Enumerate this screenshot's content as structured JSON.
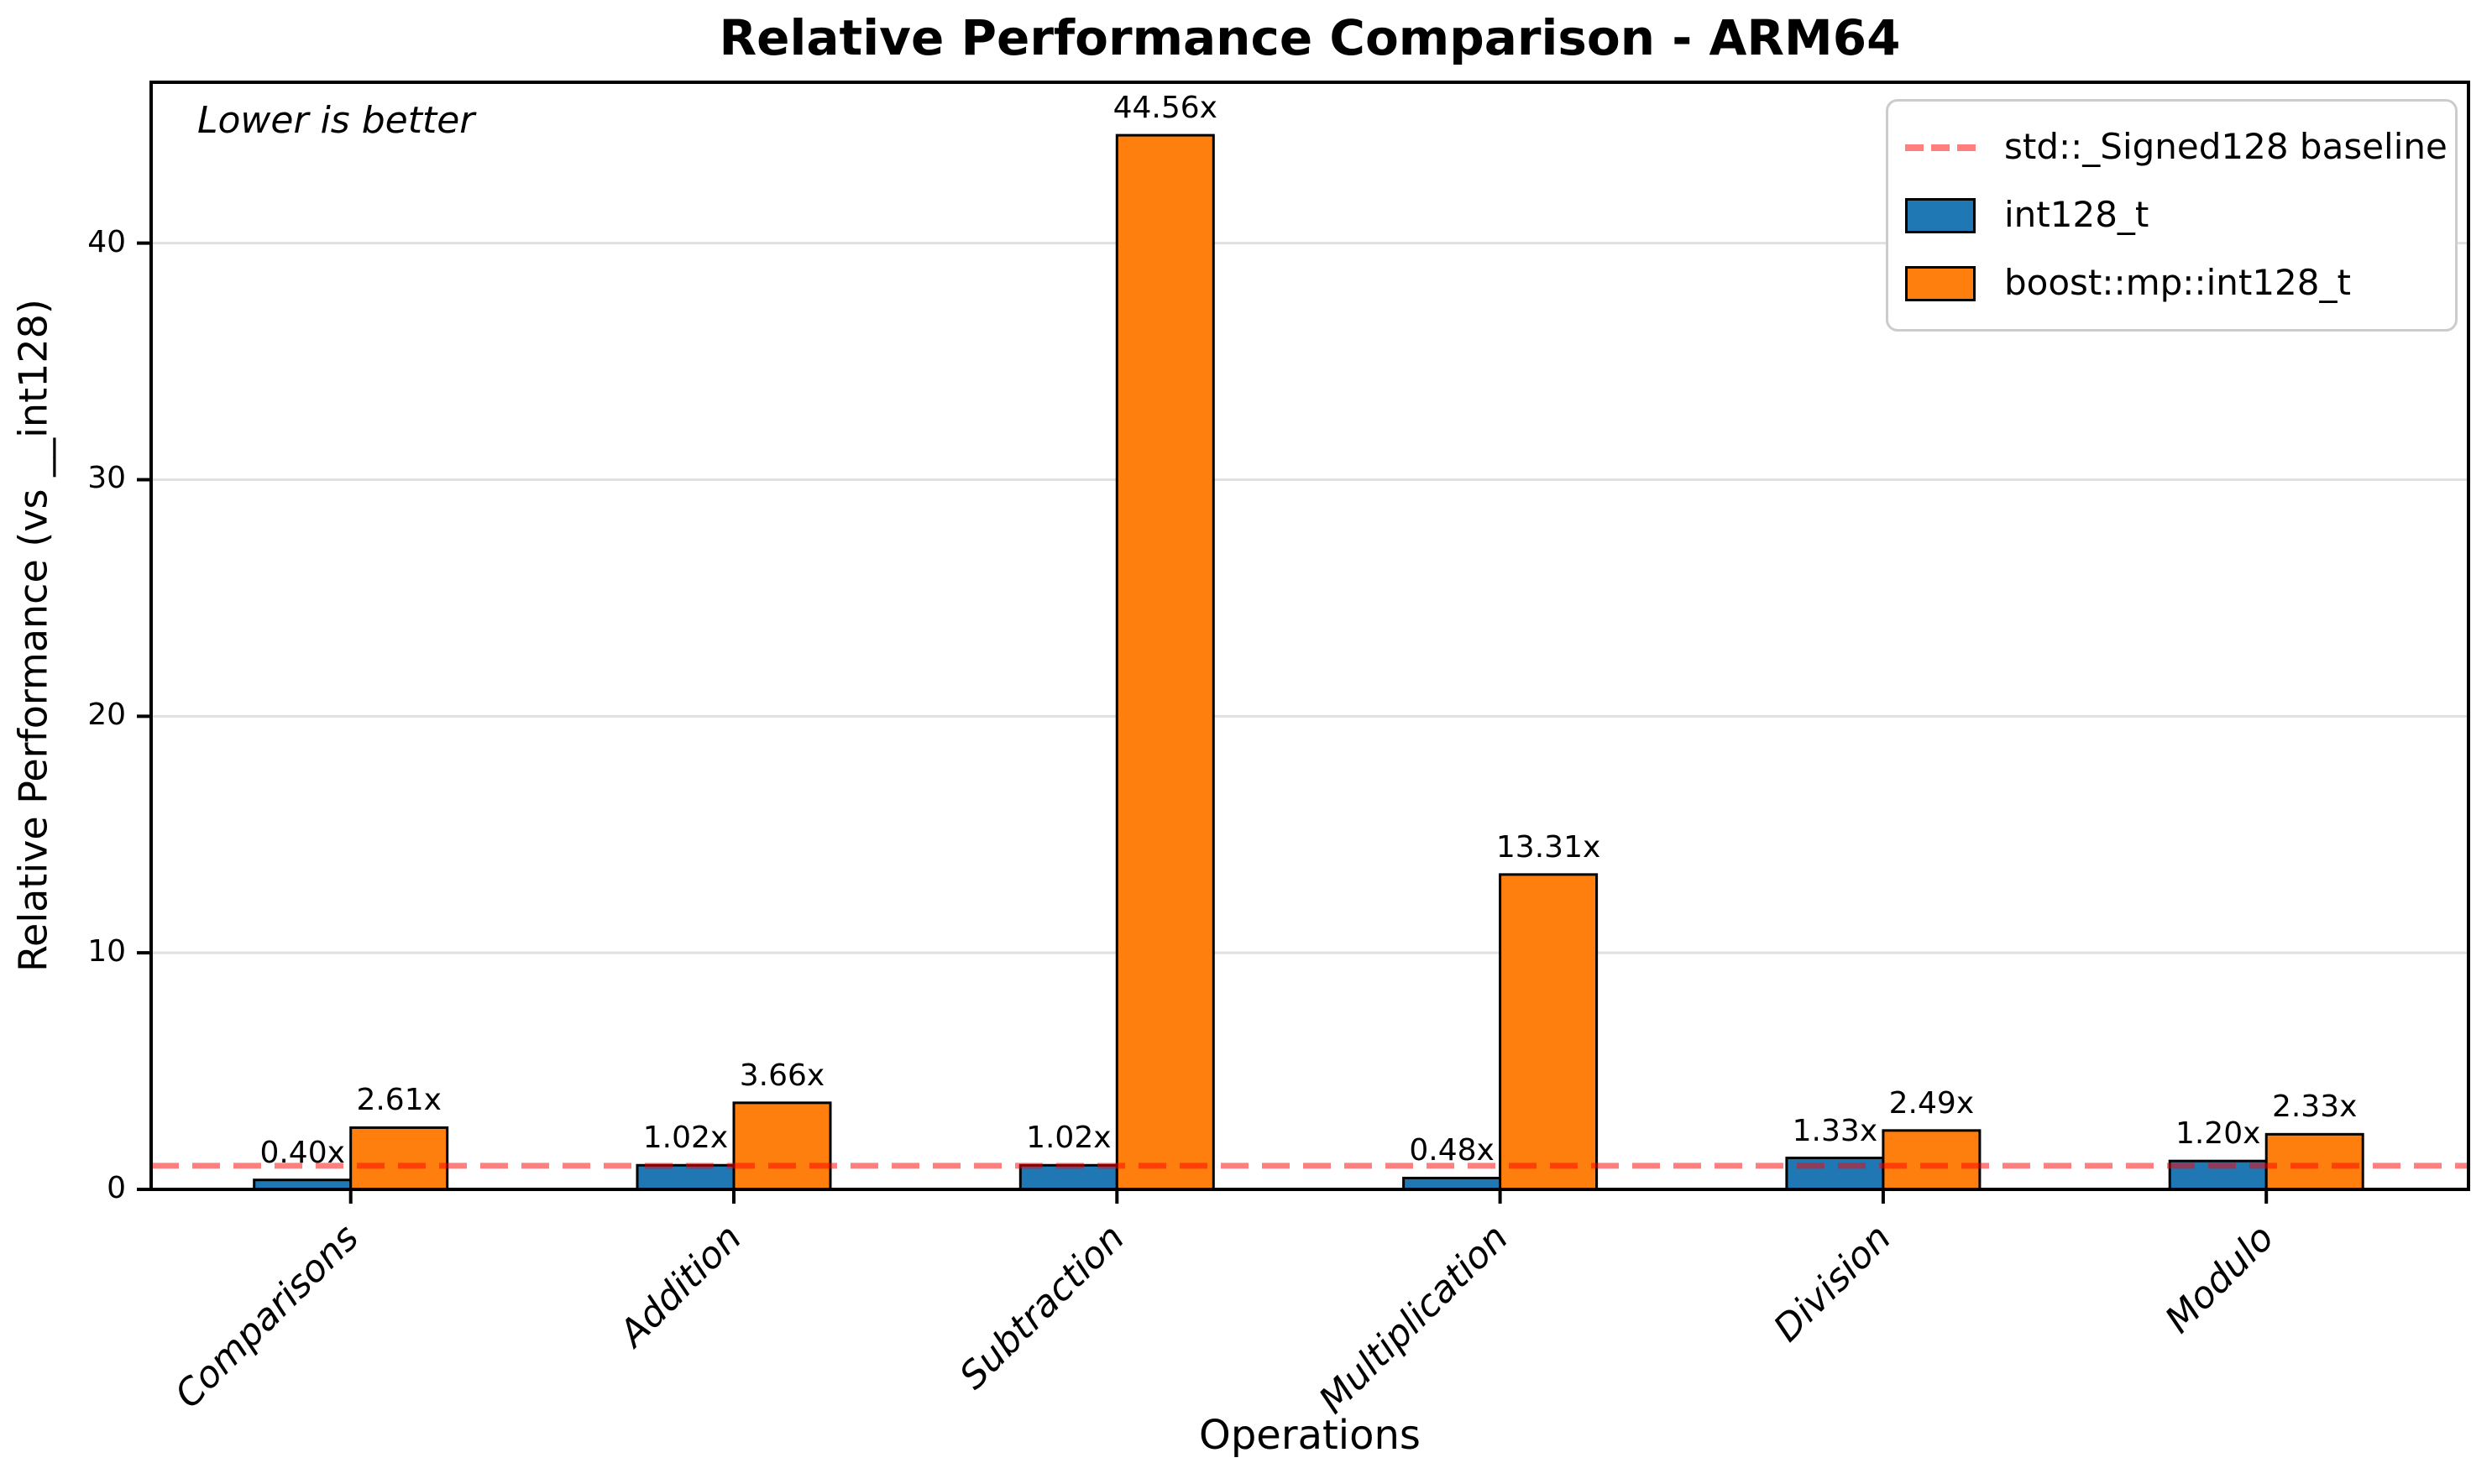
{
  "chart_data": {
    "type": "bar",
    "title": "Relative Performance Comparison - ARM64",
    "annotation": "Lower is better",
    "xlabel": "Operations",
    "ylabel": "Relative Performance (vs __int128)",
    "categories": [
      "Comparisons",
      "Addition",
      "Subtraction",
      "Multiplication",
      "Division",
      "Modulo"
    ],
    "series": [
      {
        "name": "int128_t",
        "color": "#1f77b4",
        "values": [
          0.4,
          1.02,
          1.02,
          0.48,
          1.33,
          1.2
        ],
        "labels": [
          "0.40x",
          "1.02x",
          "1.02x",
          "0.48x",
          "1.33x",
          "1.20x"
        ]
      },
      {
        "name": "boost::mp::int128_t",
        "color": "#ff7f0e",
        "values": [
          2.61,
          3.66,
          44.56,
          13.31,
          2.49,
          2.33
        ],
        "labels": [
          "2.61x",
          "3.66x",
          "44.56x",
          "13.31x",
          "2.49x",
          "2.33x"
        ]
      }
    ],
    "baseline": {
      "label": "std::_Signed128 baseline",
      "value": 1.0,
      "color": "rgba(255,0,0,0.5)"
    },
    "yticks": [
      0,
      10,
      20,
      30,
      40
    ],
    "ytick_labels": [
      "0",
      "10",
      "20",
      "30",
      "40"
    ],
    "ylim": [
      0,
      46.8
    ],
    "grid": true,
    "legend_position": "upper right",
    "bar_edge_color": "#000000",
    "grid_color": "#e0e0e0",
    "legend": {
      "items": [
        {
          "label": "std::_Signed128 baseline",
          "swatch": "dashed-line",
          "color": "rgba(255,0,0,0.5)"
        },
        {
          "label": "int128_t",
          "swatch": "rect",
          "color": "#1f77b4"
        },
        {
          "label": "boost::mp::int128_t",
          "swatch": "rect",
          "color": "#ff7f0e"
        }
      ]
    }
  }
}
